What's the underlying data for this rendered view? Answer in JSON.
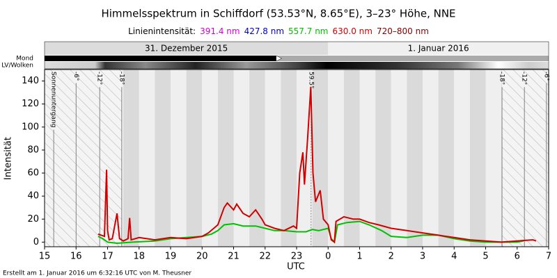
{
  "chart_data": {
    "type": "line",
    "title": "Himmelsspektrum in Schiffdorf (53.53°N, 8.65°E), 3–23° Höhe, NNE",
    "legend_title": "Linienintensität:",
    "series": [
      {
        "name": "391.4 nm",
        "color": "#d000d0"
      },
      {
        "name": "427.8 nm",
        "color": "#0000c0"
      },
      {
        "name": "557.7 nm",
        "color": "#00c000",
        "x": [
          16.7,
          16.85,
          17.0,
          17.3,
          17.8,
          18.5,
          19.0,
          19.5,
          20.0,
          20.3,
          20.5,
          20.7,
          21.0,
          21.3,
          21.7,
          22.0,
          22.3,
          22.6,
          23.0,
          23.3,
          23.5,
          23.7,
          23.85,
          24.0,
          24.1,
          24.2,
          24.3,
          24.6,
          25.0,
          25.3,
          25.7,
          26.0,
          26.5,
          27.0,
          27.5,
          28.0,
          28.5,
          29.0,
          29.5,
          30.0,
          30.2
        ],
        "values": [
          5,
          3,
          0,
          -1,
          0,
          1,
          3,
          4,
          5,
          7,
          10,
          15,
          16,
          14,
          14,
          12,
          10,
          10,
          9,
          9,
          11,
          10,
          11,
          12,
          3,
          0,
          15,
          17,
          18,
          15,
          10,
          5,
          4,
          6,
          6,
          3,
          1,
          0,
          0,
          0,
          1
        ]
      },
      {
        "name": "630.0 nm",
        "color": "#d00000",
        "x": [
          16.7,
          16.9,
          16.97,
          17.0,
          17.05,
          17.15,
          17.3,
          17.38,
          17.5,
          17.65,
          17.7,
          17.75,
          18.0,
          18.5,
          19.0,
          19.5,
          20.0,
          20.2,
          20.5,
          20.7,
          20.8,
          21.0,
          21.1,
          21.3,
          21.5,
          21.7,
          21.9,
          22.0,
          22.3,
          22.6,
          22.9,
          23.0,
          23.1,
          23.2,
          23.25,
          23.35,
          23.45,
          23.52,
          23.6,
          23.75,
          23.85,
          24.0,
          24.1,
          24.2,
          24.25,
          24.5,
          24.8,
          25.0,
          25.3,
          25.6,
          26.0,
          26.5,
          27.0,
          27.5,
          28.0,
          28.5,
          29.0,
          29.5,
          30.0,
          30.5,
          30.6
        ],
        "values": [
          7,
          5,
          63,
          10,
          2,
          3,
          25,
          3,
          1,
          3,
          21,
          2,
          4,
          2,
          4,
          3,
          5,
          8,
          15,
          30,
          34,
          28,
          33,
          25,
          22,
          28,
          20,
          15,
          12,
          10,
          14,
          12,
          60,
          78,
          50,
          90,
          135,
          60,
          35,
          45,
          20,
          15,
          2,
          0,
          18,
          22,
          20,
          20,
          17,
          15,
          12,
          10,
          8,
          6,
          4,
          2,
          1,
          0,
          1,
          2,
          1
        ]
      },
      {
        "name": "720–800 nm",
        "color": "#800000"
      }
    ],
    "xlim": [
      15,
      31
    ],
    "xticks": [
      15,
      16,
      17,
      18,
      19,
      20,
      21,
      22,
      23,
      {
        "value": 24,
        "label": "0"
      },
      {
        "value": 25,
        "label": "1"
      },
      {
        "value": 26,
        "label": "2"
      },
      {
        "value": 27,
        "label": "3"
      },
      {
        "value": 28,
        "label": "4"
      },
      {
        "value": 29,
        "label": "5"
      },
      {
        "value": 30,
        "label": "6"
      },
      {
        "value": 31,
        "label": "7"
      }
    ],
    "xlabel": "UTC",
    "ylim": [
      -4,
      150
    ],
    "yticks": [
      0,
      20,
      40,
      60,
      80,
      100,
      120,
      140
    ],
    "ylabel": "Intensität",
    "dates": [
      {
        "label": "31. Dezember 2015",
        "from": 15,
        "to": 24
      },
      {
        "label": "1. Januar 2016",
        "from": 24,
        "to": 31
      }
    ],
    "moon": {
      "label": "Mond",
      "set": 22.35
    },
    "clouds_label": "LV/Wolken",
    "twilight": [
      {
        "x": 15.29,
        "label": "Sonnenuntergang"
      },
      {
        "x": 16.0,
        "label": "-6°"
      },
      {
        "x": 16.75,
        "label": "-12°"
      },
      {
        "x": 17.45,
        "label": "-18°"
      },
      {
        "x": 29.52,
        "label": "-18°"
      },
      {
        "x": 30.23,
        "label": "-12°"
      },
      {
        "x": 30.93,
        "label": "-6°"
      }
    ],
    "moon_culmination": {
      "x": 23.46,
      "label": "59.5°"
    },
    "footer": "Erstellt am 1. Januar 2016 um 6:32:16 UTC von M. Theusner"
  }
}
